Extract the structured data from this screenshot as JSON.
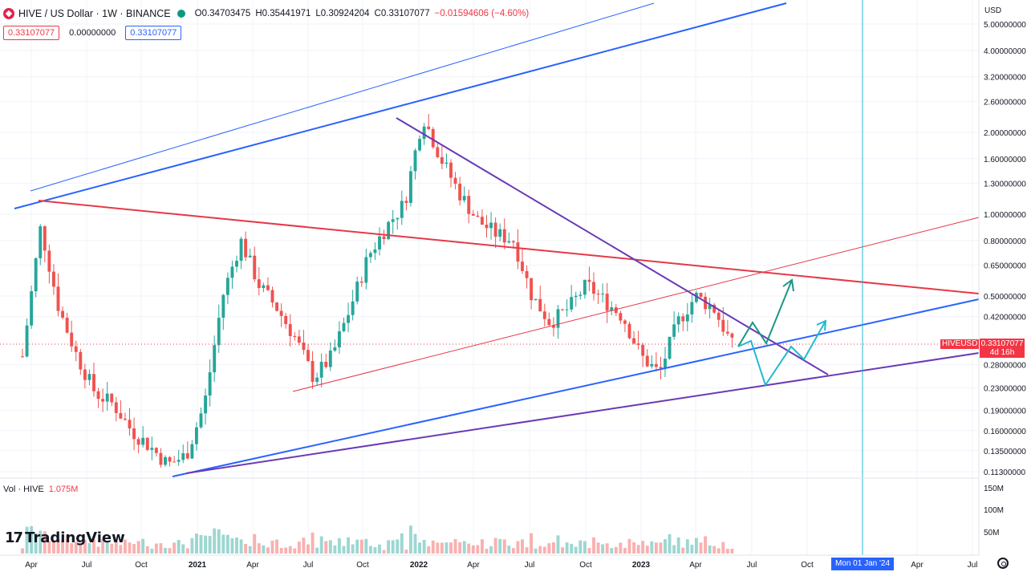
{
  "header": {
    "symbol_title": "HIVE / US Dollar · 1W · BINANCE",
    "open": "O0.34703475",
    "high": "H0.35441971",
    "low": "L0.30924204",
    "close": "C0.33107077",
    "change": "−0.01594606 (−4.60%)",
    "price_box_1": "0.33107077",
    "price_box_2": "0.00000000",
    "price_box_3": "0.33107077"
  },
  "volume_legend": {
    "label": "Vol · HIVE",
    "value": "1.075M"
  },
  "axis": {
    "currency": "USD"
  },
  "last_price": {
    "ticker": "HIVEUSD",
    "value": "0.33107077",
    "countdown": "4d 16h"
  },
  "crosshair_date": "Mon 01 Jan '24",
  "branding": {
    "name": "TradingView"
  },
  "icons": [
    "hive-logo-icon",
    "eye-icon",
    "tradingview-logo-icon",
    "settings-icon"
  ],
  "colors": {
    "up": "#26a69a",
    "down": "#ef5350",
    "channel_blue": "#2962ff",
    "resistance_red": "#e53946",
    "triangle_purple": "#6a3ab6",
    "projection_teal": "#1e9484",
    "projection_cyan": "#22b8cf"
  },
  "chart_data": {
    "type": "candlestick",
    "scale": "log",
    "price_ticks": [
      "5.00000000",
      "4.00000000",
      "3.20000000",
      "2.60000000",
      "2.00000000",
      "1.60000000",
      "1.30000000",
      "1.00000000",
      "0.80000000",
      "0.65000000",
      "0.50000000",
      "0.42000000",
      "0.28000000",
      "0.23000000",
      "0.19000000",
      "0.16000000",
      "0.13500000",
      "0.11300000"
    ],
    "volume_ticks": [
      "150M",
      "100M",
      "50M"
    ],
    "time_ticks": [
      "Apr",
      "Jul",
      "Oct",
      "2021",
      "Apr",
      "Jul",
      "Oct",
      "2022",
      "Apr",
      "Jul",
      "Oct",
      "2023",
      "Apr",
      "Jul",
      "Oct",
      "Apr",
      "Jul"
    ],
    "approx_close_path": [
      0.3,
      0.9,
      0.45,
      0.3,
      0.22,
      0.2,
      0.16,
      0.14,
      0.12,
      0.13,
      0.2,
      0.5,
      0.8,
      0.55,
      0.45,
      0.35,
      0.25,
      0.3,
      0.45,
      0.7,
      0.9,
      1.1,
      2.3,
      1.6,
      1.2,
      0.95,
      0.85,
      0.8,
      0.5,
      0.4,
      0.45,
      0.55,
      0.48,
      0.42,
      0.3,
      0.26,
      0.4,
      0.5,
      0.45,
      0.33
    ]
  }
}
